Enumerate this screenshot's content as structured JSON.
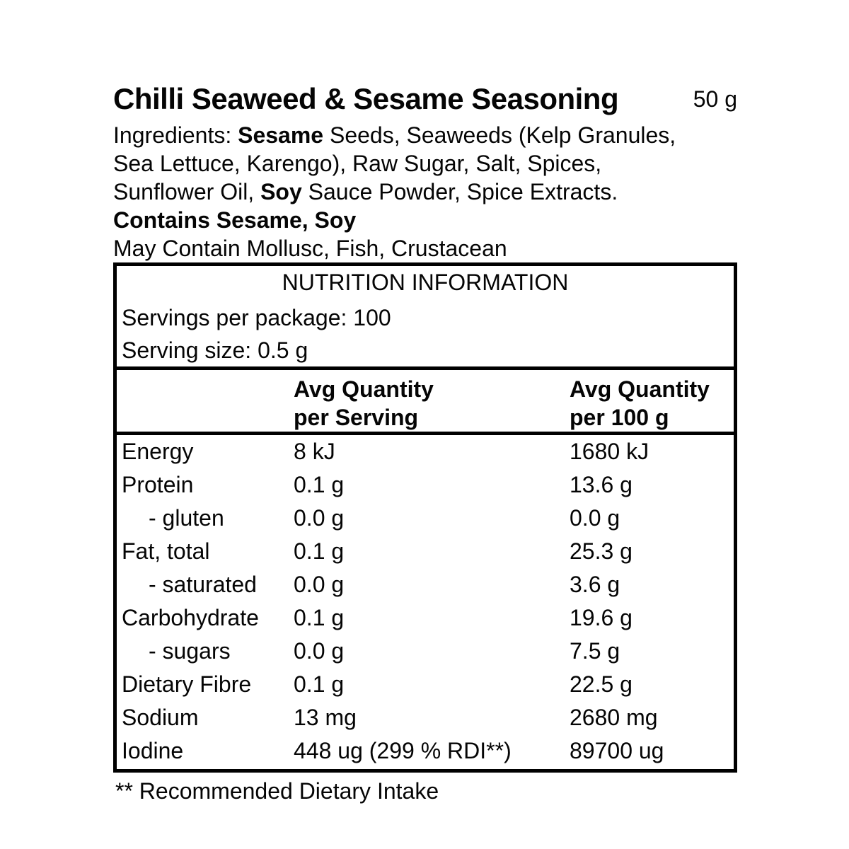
{
  "colors": {
    "background": "#ffffff",
    "text": "#050505",
    "border": "#000000"
  },
  "product": {
    "title": "Chilli Seaweed & Sesame Seasoning",
    "net_weight": "50 g",
    "ingredients_lines": [
      {
        "segments": [
          {
            "text": "Ingredients: ",
            "bold": false
          },
          {
            "text": "Sesame",
            "bold": true
          },
          {
            "text": " Seeds, Seaweeds (Kelp Granules,",
            "bold": false
          }
        ]
      },
      {
        "segments": [
          {
            "text": "Sea Lettuce, Karengo), Raw Sugar, Salt, Spices,",
            "bold": false
          }
        ]
      },
      {
        "segments": [
          {
            "text": "Sunflower Oil, ",
            "bold": false
          },
          {
            "text": "Soy",
            "bold": true
          },
          {
            "text": " Sauce Powder, Spice Extracts.",
            "bold": false
          }
        ]
      },
      {
        "segments": [
          {
            "text": "Contains Sesame, Soy",
            "bold": true
          }
        ]
      },
      {
        "segments": [
          {
            "text": "May Contain Mollusc, Fish, Crustacean",
            "bold": false
          }
        ]
      }
    ]
  },
  "nutrition": {
    "panel_title": "NUTRITION INFORMATION",
    "servings_line": "Servings per package: 100",
    "serving_size_line": "Serving size: 0.5 g",
    "column_headers": {
      "per_serving": {
        "line1": "Avg Quantity",
        "line2": "per Serving"
      },
      "per_100g": {
        "line1": "Avg Quantity",
        "line2": "per 100 g"
      }
    },
    "rows": [
      {
        "label": "Energy",
        "indent": false,
        "per_serving": "8 kJ",
        "per_100g": "1680 kJ"
      },
      {
        "label": "Protein",
        "indent": false,
        "per_serving": "0.1 g",
        "per_100g": "13.6 g"
      },
      {
        "label": "- gluten",
        "indent": true,
        "per_serving": "0.0 g",
        "per_100g": "0.0 g"
      },
      {
        "label": "Fat, total",
        "indent": false,
        "per_serving": "0.1 g",
        "per_100g": "25.3 g"
      },
      {
        "label": "- saturated",
        "indent": true,
        "per_serving": "0.0 g",
        "per_100g": "3.6 g"
      },
      {
        "label": "Carbohydrate",
        "indent": false,
        "per_serving": "0.1 g",
        "per_100g": "19.6 g"
      },
      {
        "label": "- sugars",
        "indent": true,
        "per_serving": "0.0 g",
        "per_100g": "7.5 g"
      },
      {
        "label": "Dietary Fibre",
        "indent": false,
        "per_serving": "0.1 g",
        "per_100g": "22.5 g"
      },
      {
        "label": "Sodium",
        "indent": false,
        "per_serving": "13 mg",
        "per_100g": "2680 mg"
      },
      {
        "label": "Iodine",
        "indent": false,
        "per_serving": "448 ug (299 % RDI**)",
        "per_100g": "89700 ug"
      }
    ]
  },
  "footnote": "** Recommended Dietary Intake"
}
